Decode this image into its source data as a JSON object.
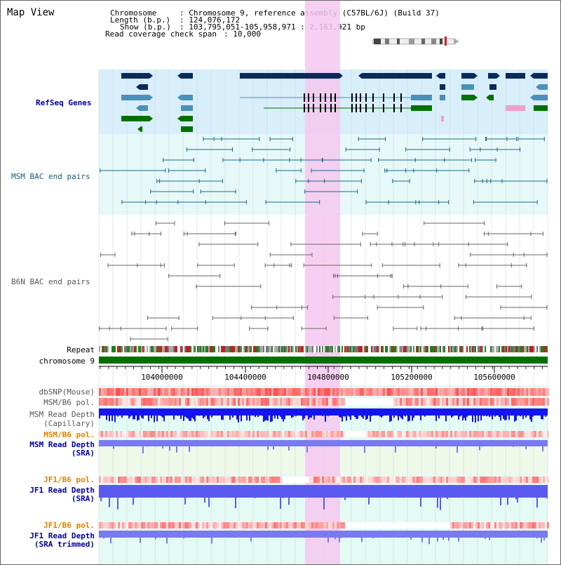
{
  "title": "Map View",
  "info": {
    "chromosome_label": "Chromosome",
    "chromosome_value": ": Chromosome 9, reference assembly (C57BL/6J) (Build 37)",
    "length_label": "Length (b.p.)",
    "length_value": ": 124,076,172",
    "show_label": "Show (b.p.)",
    "show_value": ": 103,795,051-105,958,971 : 2,163,921 bp",
    "coverage_label": "Read coverage check span",
    "coverage_value": ": 10,000"
  },
  "tracks": {
    "refseq": "RefSeq Genes",
    "msm_bac": "MSM BAC end pairs",
    "b6n_bac": "B6N BAC end pairs",
    "repeat": "Repeat",
    "chromosome": "chromosome 9",
    "dbsnp": "dbSNP(Mouse)",
    "msm_b6_pol_1": "MSM/B6 pol.",
    "msm_depth_cap_1": "MSM Read Depth",
    "msm_depth_cap_2": "(Capillary)",
    "msm_b6_pol_2": "MSM/B6 pol.",
    "msm_depth_sra_1": "MSM Read Depth",
    "msm_depth_sra_2": "(SRA)",
    "jf1_b6_pol_1": "JF1/B6 pol.",
    "jf1_depth_sra_1": "JF1 Read Depth",
    "jf1_depth_sra_2": "(SRA)",
    "jf1_b6_pol_2": "JF1/B6 pol.",
    "jf1_depth_trim_1": "JF1 Read Depth",
    "jf1_depth_trim_2": "(SRA trimmed)"
  },
  "axis": {
    "ticks": [
      "104000000",
      "104400000",
      "104800000",
      "105200000",
      "105600000"
    ]
  },
  "colors": {
    "refseq_bg": "#d8eefa",
    "bac_bg": "#e6f8f8",
    "highlight": "#f4c8f0",
    "gene_navy": "#0a2a5e",
    "gene_steel": "#4a90b8",
    "gene_green": "#007000",
    "gene_pink": "#f0a0c8",
    "chromosome_bar": "#007000",
    "depth_blue": "#0000ff",
    "depth_light": "#8080f0"
  }
}
